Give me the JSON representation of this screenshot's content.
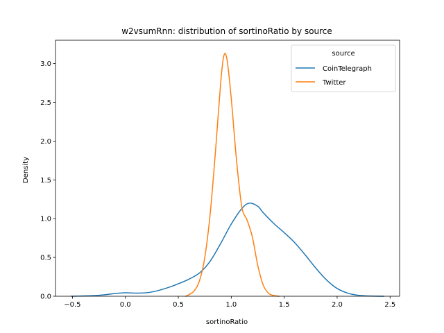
{
  "chart_data": {
    "type": "line",
    "title": "w2vsumRnn: distribution of sortinoRatio by source",
    "xlabel": "sortinoRatio",
    "ylabel": "Density",
    "xlim": [
      -0.66,
      2.59
    ],
    "ylim": [
      0,
      3.3
    ],
    "xticks": [
      -0.5,
      0.0,
      0.5,
      1.0,
      1.5,
      2.0,
      2.5
    ],
    "xtick_labels": [
      "−0.5",
      "0.0",
      "0.5",
      "1.0",
      "1.5",
      "2.0",
      "2.5"
    ],
    "yticks": [
      0.0,
      0.5,
      1.0,
      1.5,
      2.0,
      2.5,
      3.0
    ],
    "ytick_labels": [
      "0.0",
      "0.5",
      "1.0",
      "1.5",
      "2.0",
      "2.5",
      "3.0"
    ],
    "grid": false,
    "legend": {
      "title": "source",
      "placement": "top-right"
    },
    "series": [
      {
        "name": "CoinTelegraph",
        "color": "#1f77b4",
        "x": [
          -0.51,
          -0.4,
          -0.3,
          -0.2,
          -0.1,
          0.0,
          0.1,
          0.2,
          0.3,
          0.4,
          0.5,
          0.6,
          0.7,
          0.8,
          0.9,
          1.0,
          1.1,
          1.17,
          1.25,
          1.3,
          1.4,
          1.5,
          1.6,
          1.7,
          1.8,
          1.9,
          2.0,
          2.1,
          2.2,
          2.3,
          2.44
        ],
        "y": [
          0.0,
          0.003,
          0.008,
          0.018,
          0.035,
          0.045,
          0.04,
          0.045,
          0.07,
          0.11,
          0.16,
          0.22,
          0.3,
          0.45,
          0.68,
          0.93,
          1.13,
          1.2,
          1.16,
          1.08,
          0.94,
          0.82,
          0.69,
          0.53,
          0.36,
          0.21,
          0.1,
          0.04,
          0.012,
          0.003,
          0.0
        ]
      },
      {
        "name": "Twitter",
        "color": "#ff7f0e",
        "x": [
          0.57,
          0.6,
          0.65,
          0.7,
          0.75,
          0.8,
          0.85,
          0.9,
          0.93,
          0.96,
          1.0,
          1.05,
          1.1,
          1.15,
          1.2,
          1.25,
          1.3,
          1.35,
          1.4,
          1.45
        ],
        "y": [
          0.0,
          0.02,
          0.07,
          0.2,
          0.5,
          1.05,
          1.85,
          2.75,
          3.1,
          3.05,
          2.55,
          1.75,
          1.15,
          0.98,
          0.76,
          0.4,
          0.15,
          0.04,
          0.01,
          0.0
        ]
      }
    ]
  }
}
